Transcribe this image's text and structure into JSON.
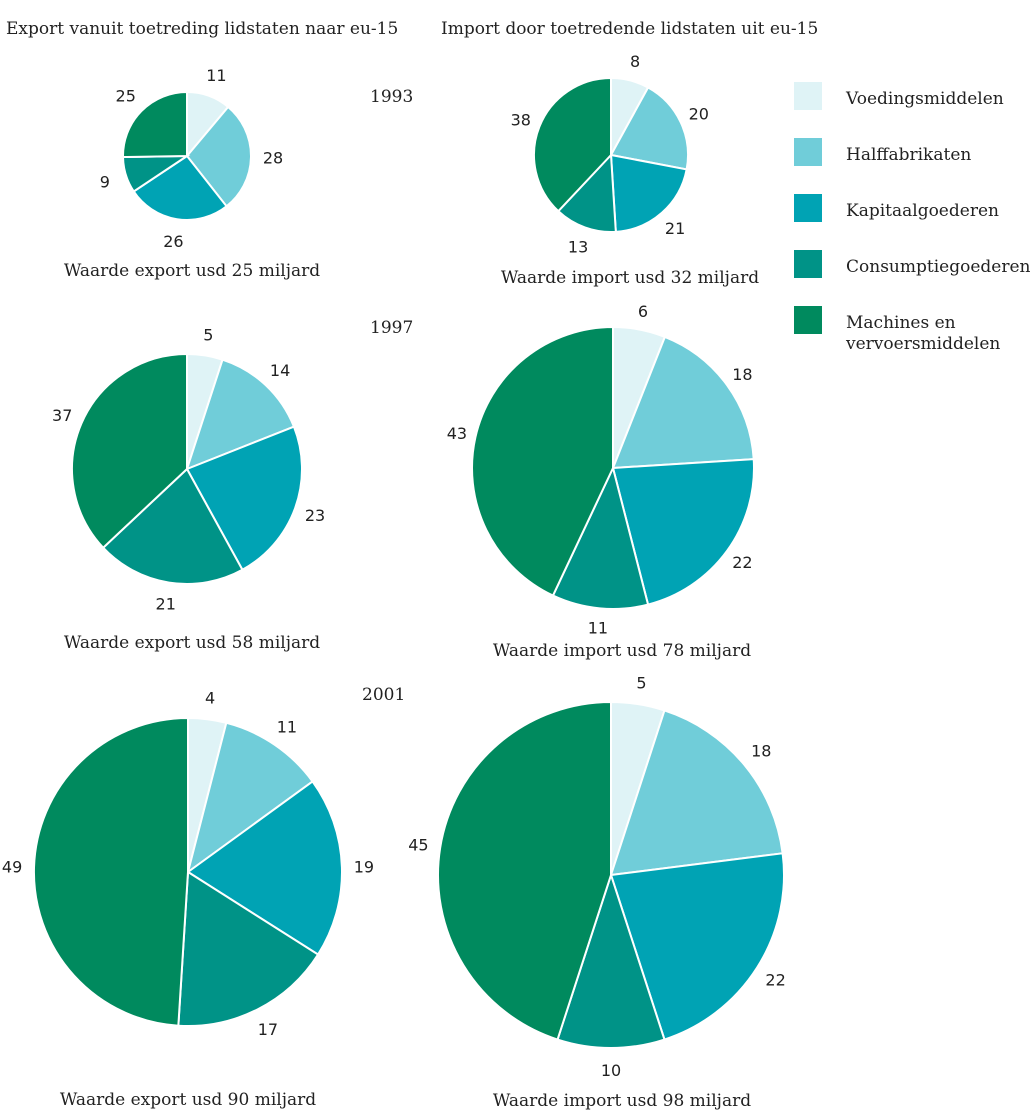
{
  "headers": {
    "export": "Export vanuit toetreding lidstaten naar eu-15",
    "import": "Import door toetredende lidstaten uit eu-15"
  },
  "years": [
    "1993",
    "1997",
    "2001"
  ],
  "colors": {
    "Voedingsmiddelen": "#dff3f6",
    "Halffabrikaten": "#70cdd9",
    "Kapitaalgoederen": "#00a3b4",
    "Consumptiegoederen": "#009387",
    "Machines en vervoersmiddelen": "#008a5e"
  },
  "legend": {
    "items": [
      {
        "label": "Voedingsmiddelen",
        "lines": [
          "Voedingsmiddelen"
        ]
      },
      {
        "label": "Halffabrikaten",
        "lines": [
          "Halffabrikaten"
        ]
      },
      {
        "label": "Kapitaalgoederen",
        "lines": [
          "Kapitaalgoederen"
        ]
      },
      {
        "label": "Consumptiegoederen",
        "lines": [
          "Consumptiegoederen"
        ]
      },
      {
        "label": "Machines en vervoersmiddelen",
        "lines": [
          "Machines en",
          "vervoersmiddelen"
        ]
      }
    ]
  },
  "chart_data": [
    {
      "type": "pie",
      "id": "export-1993",
      "year": "1993",
      "caption": "Waarde export usd 25 miljard",
      "categories": [
        "Voedingsmiddelen",
        "Halffabrikaten",
        "Kapitaalgoederen",
        "Consumptiegoederen",
        "Machines en vervoersmiddelen"
      ],
      "values": [
        11,
        28,
        26,
        9,
        25
      ]
    },
    {
      "type": "pie",
      "id": "import-1993",
      "year": "1993",
      "caption": "Waarde import usd 32 miljard",
      "categories": [
        "Voedingsmiddelen",
        "Halffabrikaten",
        "Kapitaalgoederen",
        "Consumptiegoederen",
        "Machines en vervoersmiddelen"
      ],
      "values": [
        8,
        20,
        21,
        13,
        38
      ]
    },
    {
      "type": "pie",
      "id": "export-1997",
      "year": "1997",
      "caption": "Waarde export usd 58 miljard",
      "categories": [
        "Voedingsmiddelen",
        "Halffabrikaten",
        "Kapitaalgoederen",
        "Consumptiegoederen",
        "Machines en vervoersmiddelen"
      ],
      "values": [
        5,
        14,
        23,
        21,
        37
      ]
    },
    {
      "type": "pie",
      "id": "import-1997",
      "year": "1997",
      "caption": "Waarde import usd 78 miljard",
      "categories": [
        "Voedingsmiddelen",
        "Halffabrikaten",
        "Kapitaalgoederen",
        "Consumptiegoederen",
        "Machines en vervoersmiddelen"
      ],
      "values": [
        6,
        18,
        22,
        11,
        43
      ]
    },
    {
      "type": "pie",
      "id": "export-2001",
      "year": "2001",
      "caption": "Waarde export usd 90 miljard",
      "categories": [
        "Voedingsmiddelen",
        "Halffabrikaten",
        "Kapitaalgoederen",
        "Consumptiegoederen",
        "Machines en vervoersmiddelen"
      ],
      "values": [
        4,
        11,
        19,
        17,
        49
      ]
    },
    {
      "type": "pie",
      "id": "import-2001",
      "year": "2001",
      "caption": "Waarde import usd 98 miljard",
      "categories": [
        "Voedingsmiddelen",
        "Halffabrikaten",
        "Kapitaalgoederen",
        "Consumptiegoederen",
        "Machines en vervoersmiddelen"
      ],
      "values": [
        5,
        18,
        22,
        10,
        45
      ]
    }
  ]
}
